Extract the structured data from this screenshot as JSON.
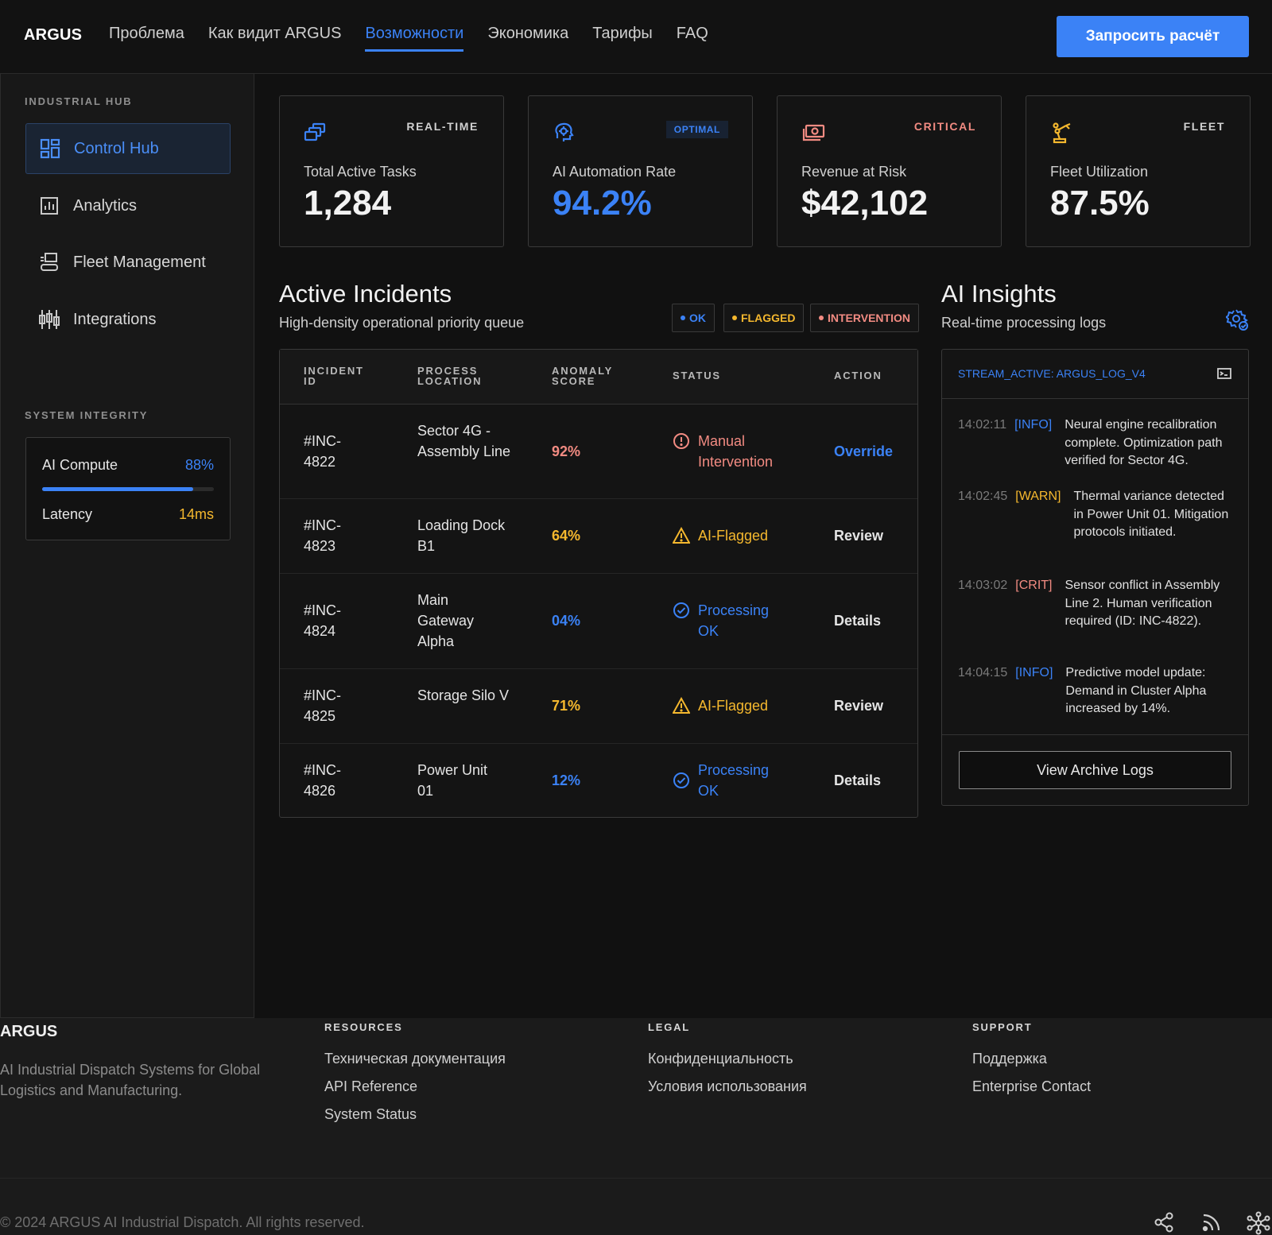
{
  "nav": {
    "brand": "ARGUS",
    "links": [
      "Проблема",
      "Как видит ARGUS",
      "Возможности",
      "Экономика",
      "Тарифы",
      "FAQ"
    ],
    "active_link": "Возможности",
    "cta_label": "Запросить расчёт"
  },
  "sidebar": {
    "section_hub": "INDUSTRIAL HUB",
    "items": [
      {
        "label": "Control Hub",
        "icon": "dashboard-icon",
        "active": true
      },
      {
        "label": "Analytics",
        "icon": "analytics-icon",
        "active": false
      },
      {
        "label": "Fleet Management",
        "icon": "fleet-icon",
        "active": false
      },
      {
        "label": "Integrations",
        "icon": "integrations-icon",
        "active": false
      }
    ],
    "section_integrity": "SYSTEM INTEGRITY",
    "integrity": {
      "compute_label": "AI Compute",
      "compute_value": "88%",
      "compute_fraction": 0.88,
      "latency_label": "Latency",
      "latency_value": "14ms"
    }
  },
  "stats": [
    {
      "tag": "REAL-TIME",
      "label": "Total Active Tasks",
      "value": "1,284",
      "icon": "tasks-icon"
    },
    {
      "tag": "OPTIMAL",
      "label": "AI Automation Rate",
      "value": "94.2%",
      "icon": "brain-icon"
    },
    {
      "tag": "CRITICAL",
      "label": "Revenue at Risk",
      "value": "$42,102",
      "icon": "money-icon"
    },
    {
      "tag": "FLEET",
      "label": "Fleet Utilization",
      "value": "87.5%",
      "icon": "robot-arm-icon"
    }
  ],
  "incidents": {
    "title": "Active Incidents",
    "subtitle": "High-density operational priority queue",
    "legend": {
      "ok": "OK",
      "flagged": "FLAGGED",
      "intervention": "INTERVENTION"
    },
    "columns": {
      "id": "INCIDENT ID",
      "location": "PROCESS LOCATION",
      "score": "ANOMALY SCORE",
      "status": "STATUS",
      "action": "ACTION"
    },
    "rows": [
      {
        "id": "#INC-4822",
        "location": "Sector 4G - Assembly Line",
        "score": "92%",
        "status": "Manual Intervention",
        "kind": "intervention",
        "action": "Override"
      },
      {
        "id": "#INC-4823",
        "location": "Loading Dock B1",
        "score": "64%",
        "status": "AI-Flagged",
        "kind": "flagged",
        "action": "Review"
      },
      {
        "id": "#INC-4824",
        "location": "Main Gateway Alpha",
        "score": "04%",
        "status": "Processing OK",
        "kind": "ok",
        "action": "Details"
      },
      {
        "id": "#INC-4825",
        "location": "Storage Silo V",
        "score": "71%",
        "status": "AI-Flagged",
        "kind": "flagged",
        "action": "Review"
      },
      {
        "id": "#INC-4826",
        "location": "Power Unit 01",
        "score": "12%",
        "status": "Processing OK",
        "kind": "ok",
        "action": "Details"
      }
    ]
  },
  "insights": {
    "title": "AI Insights",
    "subtitle": "Real-time processing logs",
    "stream": "STREAM_ACTIVE: ARGUS_LOG_V4",
    "logs": [
      {
        "time": "14:02:11",
        "level": "[INFO]",
        "kind": "info",
        "message": "Neural engine recalibration complete. Optimization path verified for Sector 4G."
      },
      {
        "time": "14:02:45",
        "level": "[WARN]",
        "kind": "warn",
        "message": "Thermal variance detected in Power Unit 01. Mitigation protocols initiated."
      },
      {
        "time": "14:03:02",
        "level": "[CRIT]",
        "kind": "crit",
        "message": "Sensor conflict in Assembly Line 2. Human verification required (ID: INC-4822)."
      },
      {
        "time": "14:04:15",
        "level": "[INFO]",
        "kind": "info",
        "message": "Predictive model update: Demand in Cluster Alpha increased by 14%."
      }
    ],
    "archive_label": "View Archive Logs"
  },
  "footer": {
    "brand": "ARGUS",
    "description": "AI Industrial Dispatch Systems for Global Logistics and Manufacturing.",
    "resources_head": "RESOURCES",
    "resources": [
      "Техническая документация",
      "API Reference",
      "System Status"
    ],
    "legal_head": "LEGAL",
    "legal": [
      "Конфиденциальность",
      "Условия использования"
    ],
    "support_head": "SUPPORT",
    "support": [
      "Поддержка",
      "Enterprise Contact"
    ],
    "copyright": "© 2024 ARGUS AI Industrial Dispatch. All rights reserved.",
    "social_icons": [
      "share-icon",
      "rss-icon",
      "network-icon"
    ]
  },
  "colors": {
    "accent": "#3b82f6",
    "warn": "#f5b82e",
    "crit": "#f28b82",
    "ok": "#3b82f6"
  }
}
